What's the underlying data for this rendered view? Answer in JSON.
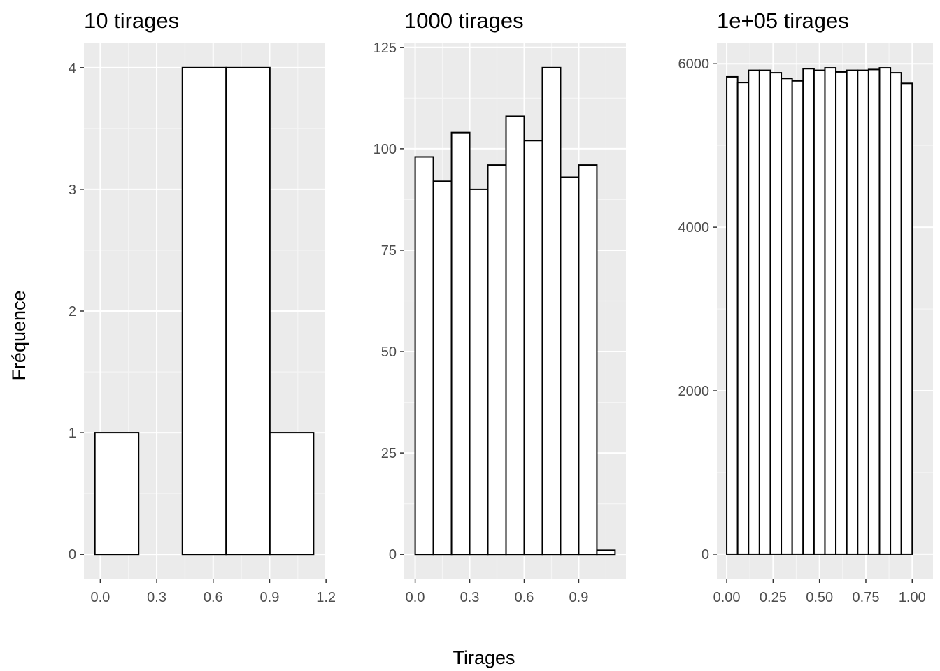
{
  "chart_data": [
    {
      "type": "bar",
      "title": "10 tirages",
      "xlabel": "Tirages",
      "ylabel": "Fréquence",
      "bins": [
        {
          "x0": -0.0287,
          "x1": 0.2038,
          "count": 1
        },
        {
          "x0": 0.2038,
          "x1": 0.4363,
          "count": 0
        },
        {
          "x0": 0.4363,
          "x1": 0.6688,
          "count": 4
        },
        {
          "x0": 0.6688,
          "x1": 0.9013,
          "count": 4
        },
        {
          "x0": 0.9013,
          "x1": 1.1338,
          "count": 1
        }
      ],
      "xlim": [
        -0.087,
        1.192
      ],
      "ylim": [
        -0.2,
        4.2
      ],
      "xticks": [
        0.0,
        0.3,
        0.6,
        0.9,
        1.2
      ],
      "xtick_labels": [
        "0.0",
        "0.3",
        "0.6",
        "0.9",
        "1.2"
      ],
      "yticks": [
        0,
        1,
        2,
        3,
        4
      ],
      "ytick_labels": [
        "0",
        "1",
        "2",
        "3",
        "4"
      ],
      "grid": true
    },
    {
      "type": "bar",
      "title": "1000 tirages",
      "xlabel": "Tirages",
      "ylabel": "Fréquence",
      "bins": [
        {
          "x0": 0.0,
          "x1": 0.1,
          "count": 98
        },
        {
          "x0": 0.1,
          "x1": 0.2,
          "count": 92
        },
        {
          "x0": 0.2,
          "x1": 0.3,
          "count": 104
        },
        {
          "x0": 0.3,
          "x1": 0.4,
          "count": 90
        },
        {
          "x0": 0.4,
          "x1": 0.5,
          "count": 96
        },
        {
          "x0": 0.5,
          "x1": 0.6,
          "count": 108
        },
        {
          "x0": 0.6,
          "x1": 0.7,
          "count": 102
        },
        {
          "x0": 0.7,
          "x1": 0.8,
          "count": 120
        },
        {
          "x0": 0.8,
          "x1": 0.9,
          "count": 93
        },
        {
          "x0": 0.9,
          "x1": 1.0,
          "count": 96
        },
        {
          "x0": 1.0,
          "x1": 1.1,
          "count": 1
        }
      ],
      "xlim": [
        -0.06,
        1.16
      ],
      "ylim": [
        -6,
        126
      ],
      "xticks": [
        0.0,
        0.3,
        0.6,
        0.9
      ],
      "xtick_labels": [
        "0.0",
        "0.3",
        "0.6",
        "0.9"
      ],
      "yticks": [
        0,
        25,
        50,
        75,
        100,
        125
      ],
      "ytick_labels": [
        "0",
        "25",
        "50",
        "75",
        "100",
        "125"
      ],
      "grid": true
    },
    {
      "type": "bar",
      "title": "1e+05 tirages",
      "xlabel": "Tirages",
      "ylabel": "Fréquence",
      "bins": [
        {
          "x0": 0.0,
          "x1": 0.0588,
          "count": 5840
        },
        {
          "x0": 0.0588,
          "x1": 0.1176,
          "count": 5770
        },
        {
          "x0": 0.1176,
          "x1": 0.1765,
          "count": 5920
        },
        {
          "x0": 0.1765,
          "x1": 0.2353,
          "count": 5920
        },
        {
          "x0": 0.2353,
          "x1": 0.2941,
          "count": 5890
        },
        {
          "x0": 0.2941,
          "x1": 0.3529,
          "count": 5820
        },
        {
          "x0": 0.3529,
          "x1": 0.4118,
          "count": 5790
        },
        {
          "x0": 0.4118,
          "x1": 0.4706,
          "count": 5940
        },
        {
          "x0": 0.4706,
          "x1": 0.5294,
          "count": 5920
        },
        {
          "x0": 0.5294,
          "x1": 0.5882,
          "count": 5950
        },
        {
          "x0": 0.5882,
          "x1": 0.6471,
          "count": 5900
        },
        {
          "x0": 0.6471,
          "x1": 0.7059,
          "count": 5920
        },
        {
          "x0": 0.7059,
          "x1": 0.7647,
          "count": 5920
        },
        {
          "x0": 0.7647,
          "x1": 0.8235,
          "count": 5930
        },
        {
          "x0": 0.8235,
          "x1": 0.8824,
          "count": 5950
        },
        {
          "x0": 0.8824,
          "x1": 0.9412,
          "count": 5890
        },
        {
          "x0": 0.9412,
          "x1": 1.0,
          "count": 5760
        },
        {
          "x0": 1.0,
          "x1": 1.0588,
          "count": 0
        }
      ],
      "xlim": [
        -0.053,
        1.112
      ],
      "ylim": [
        -300,
        6250
      ],
      "xticks": [
        0.0,
        0.25,
        0.5,
        0.75,
        1.0
      ],
      "xtick_labels": [
        "0.00",
        "0.25",
        "0.50",
        "0.75",
        "1.00"
      ],
      "yticks": [
        0,
        2000,
        4000,
        6000
      ],
      "ytick_labels": [
        "0",
        "2000",
        "4000",
        "6000"
      ],
      "grid": true
    }
  ],
  "labels": {
    "xlabel": "Tirages",
    "ylabel": "Fréquence"
  },
  "colors": {
    "panel_background": "#ebebeb",
    "grid_major": "#ffffff",
    "grid_minor": "#f5f5f5",
    "bar_fill": "#ffffff",
    "bar_stroke": "#000000",
    "tick_text": "#4d4d4d",
    "tick_mark": "#333333"
  }
}
